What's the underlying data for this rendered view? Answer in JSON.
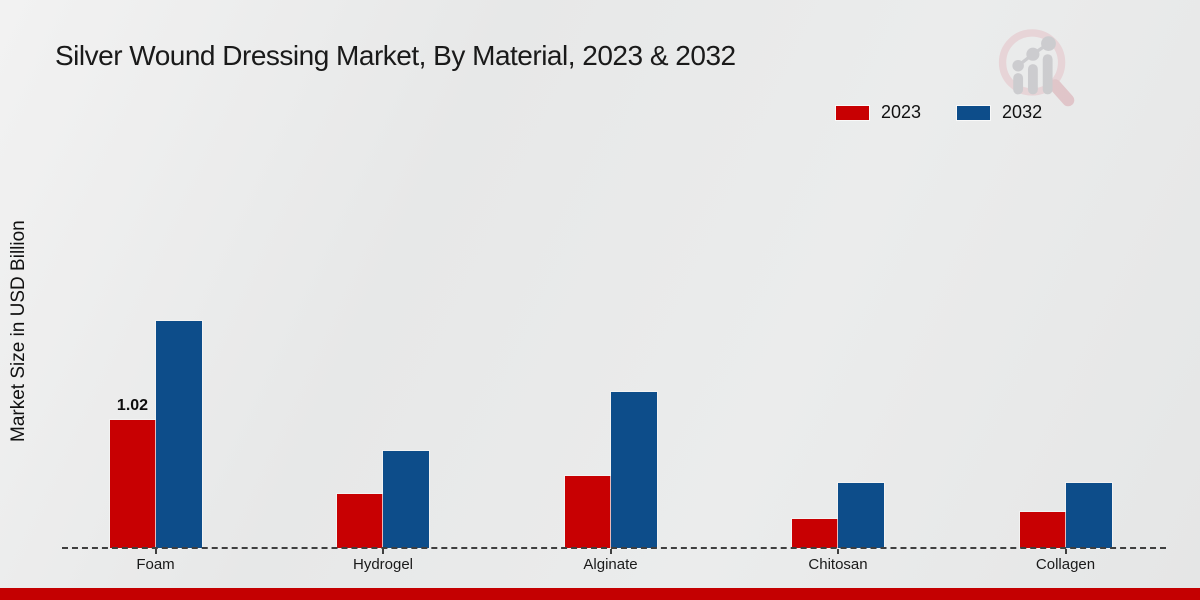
{
  "chart_data": {
    "type": "bar",
    "title": "Silver Wound Dressing Market, By Material, 2023 & 2032",
    "xlabel": "",
    "ylabel": "Market Size in USD Billion",
    "categories": [
      "Foam",
      "Hydrogel",
      "Alginate",
      "Chitosan",
      "Collagen"
    ],
    "series": [
      {
        "name": "2023",
        "color": "#c80002",
        "values": [
          1.02,
          0.43,
          0.57,
          0.23,
          0.29
        ]
      },
      {
        "name": "2032",
        "color": "#0d4d8a",
        "values": [
          1.81,
          0.77,
          1.24,
          0.52,
          0.52
        ]
      }
    ],
    "bar_labels": [
      {
        "series": "2023",
        "category": "Foam",
        "text": "1.02"
      }
    ],
    "ylim": [
      0,
      3.66
    ],
    "grid": false,
    "legend_position": "upper right",
    "baseline_style": "dashed"
  },
  "colors": {
    "accent_red": "#c80002",
    "accent_blue": "#0d4d8a",
    "bottom_bar": "#c40001",
    "axis": "#3f3f3f"
  }
}
